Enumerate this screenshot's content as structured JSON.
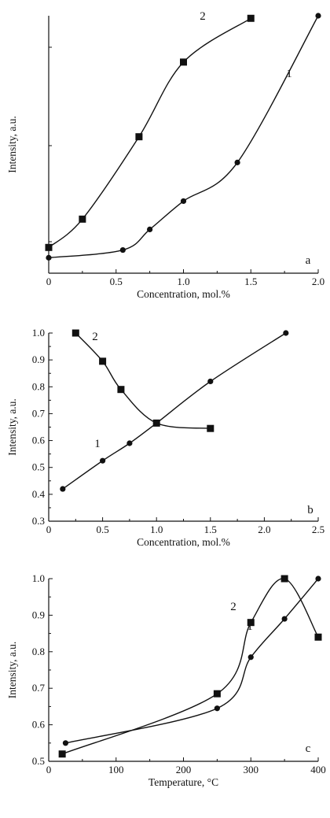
{
  "chart_data": [
    {
      "type": "scatter",
      "panel_label": "a",
      "xlabel": "Concentration, mol.%",
      "ylabel": "Intensity, a.u.",
      "xlim": [
        0,
        2.0
      ],
      "ylim": [
        0,
        1
      ],
      "x_ticks": [
        "0",
        "0.5",
        "1.0",
        "1.5",
        "2.0"
      ],
      "y_ticks": [],
      "series": [
        {
          "name": "1",
          "marker": "circle",
          "x": [
            0,
            0.55,
            0.75,
            1.0,
            1.4,
            2.0
          ],
          "y": [
            0.06,
            0.09,
            0.17,
            0.28,
            0.43,
            1.0
          ]
        },
        {
          "name": "2",
          "marker": "square",
          "x": [
            0,
            0.25,
            0.67,
            1.0,
            1.5
          ],
          "y": [
            0.1,
            0.21,
            0.53,
            0.82,
            0.99
          ]
        }
      ]
    },
    {
      "type": "scatter",
      "panel_label": "b",
      "xlabel": "Concentration, mol.%",
      "ylabel": "Intensity, a.u.",
      "xlim": [
        0,
        2.5
      ],
      "ylim": [
        0.3,
        1.0
      ],
      "x_ticks": [
        "0",
        "0.5",
        "1.0",
        "1.5",
        "2.0",
        "2.5"
      ],
      "y_ticks": [
        "0.3",
        "0.4",
        "0.5",
        "0.6",
        "0.7",
        "0.8",
        "0.9",
        "1.0"
      ],
      "series": [
        {
          "name": "1",
          "marker": "circle",
          "x": [
            0.13,
            0.5,
            0.75,
            1.0,
            1.5,
            2.2
          ],
          "y": [
            0.42,
            0.525,
            0.59,
            0.665,
            0.82,
            1.0
          ]
        },
        {
          "name": "2",
          "marker": "square",
          "x": [
            0.25,
            0.5,
            0.67,
            1.0,
            1.5
          ],
          "y": [
            1.0,
            0.895,
            0.79,
            0.665,
            0.645
          ]
        }
      ]
    },
    {
      "type": "scatter",
      "panel_label": "c",
      "xlabel": "Temperature, °C",
      "ylabel": "Intensity, a.u.",
      "xlim": [
        0,
        400
      ],
      "ylim": [
        0.5,
        1.0
      ],
      "x_ticks": [
        "0",
        "100",
        "200",
        "300",
        "400"
      ],
      "y_ticks": [
        "0.5",
        "0.6",
        "0.7",
        "0.8",
        "0.9",
        "1.0"
      ],
      "series": [
        {
          "name": "1",
          "marker": "circle",
          "x": [
            25,
            250,
            300,
            350,
            400
          ],
          "y": [
            0.55,
            0.645,
            0.785,
            0.89,
            1.0
          ]
        },
        {
          "name": "2",
          "marker": "square",
          "x": [
            20,
            250,
            300,
            350,
            400
          ],
          "y": [
            0.52,
            0.685,
            0.88,
            1.0,
            0.84
          ]
        }
      ]
    }
  ]
}
